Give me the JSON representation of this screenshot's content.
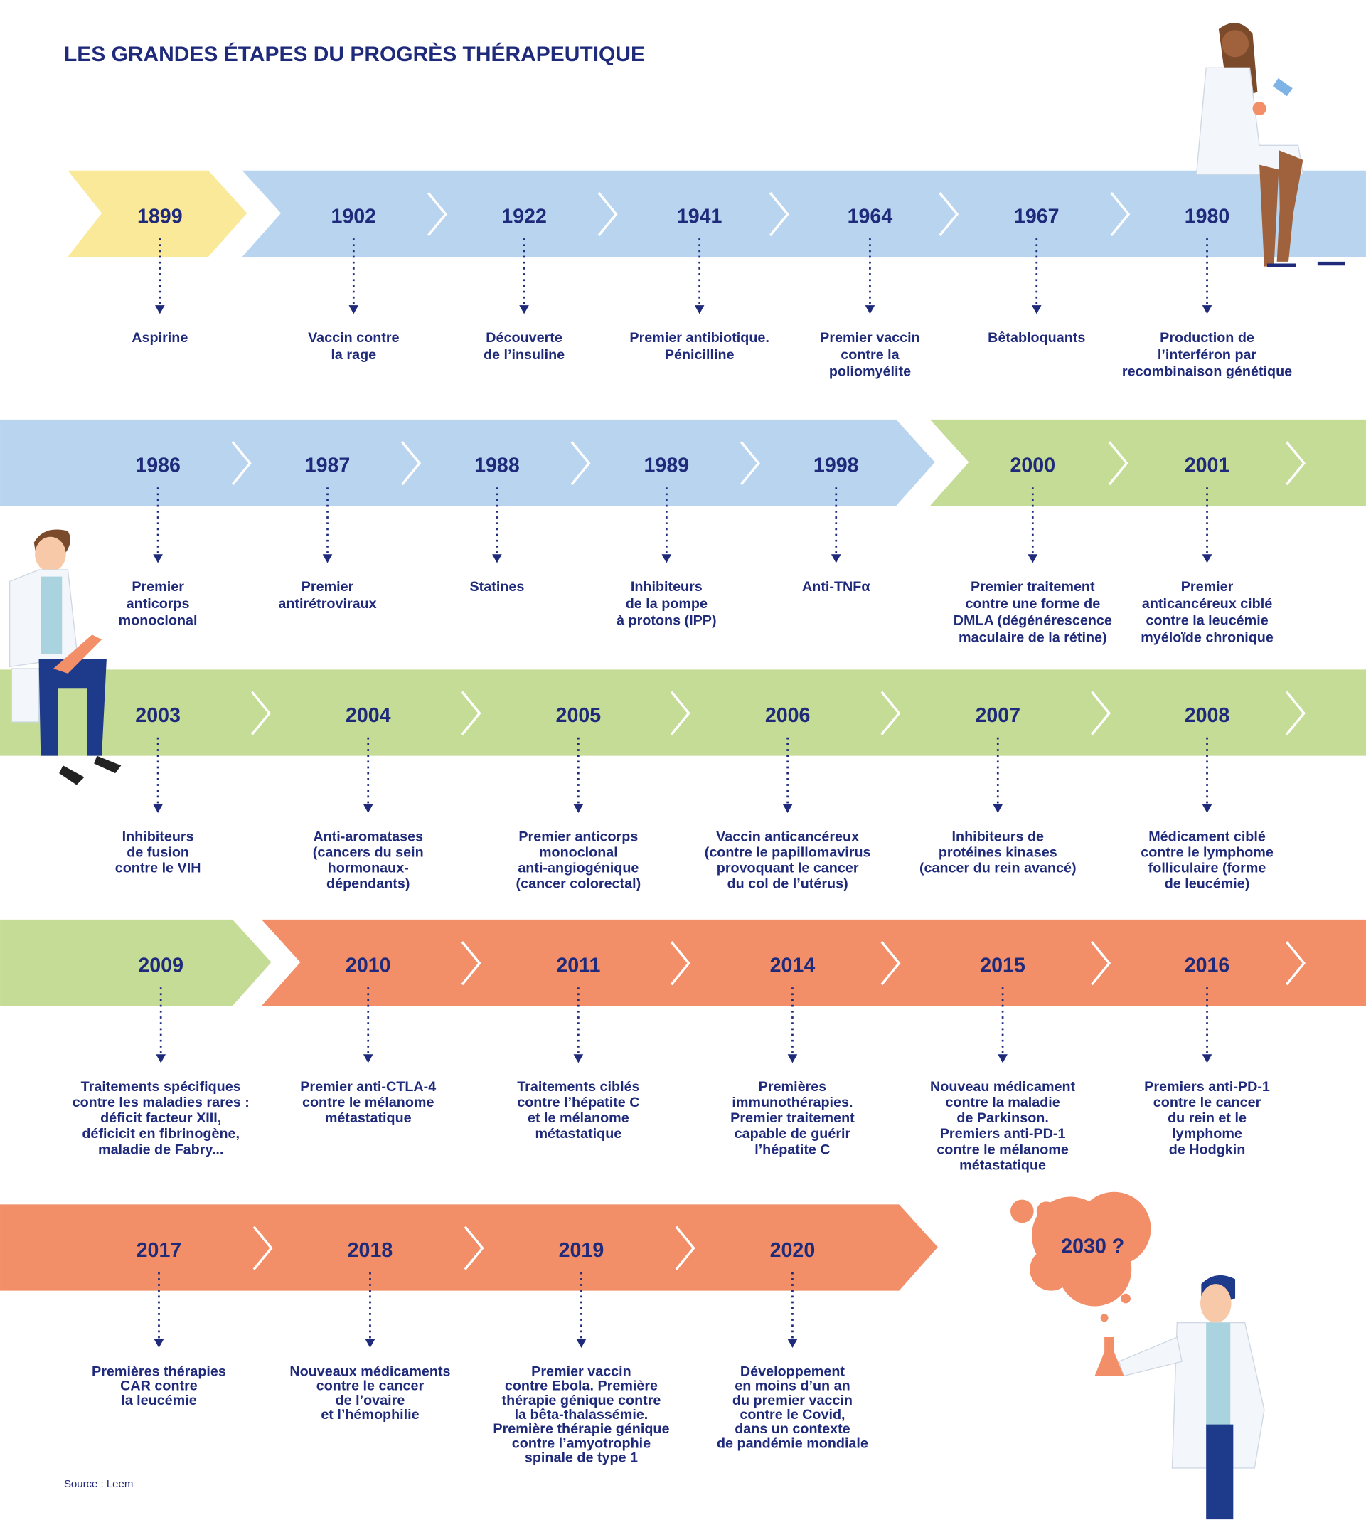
{
  "header": {
    "title": "LES GRANDES ÉTAPES DU PROGRÈS THÉRAPEUTIQUE"
  },
  "timeline": {
    "rows": [
      {
        "events": [
          {
            "year": "1899",
            "text": [
              "Aspirine"
            ]
          },
          {
            "year": "1902",
            "text": [
              "Vaccin contre",
              "la rage"
            ]
          },
          {
            "year": "1922",
            "text": [
              "Découverte",
              "de l’insuline"
            ]
          },
          {
            "year": "1941",
            "text": [
              "Premier antibiotique.",
              "Pénicilline"
            ]
          },
          {
            "year": "1964",
            "text": [
              "Premier vaccin",
              "contre la",
              "poliomyélite"
            ]
          },
          {
            "year": "1967",
            "text": [
              "Bêtabloquants"
            ]
          },
          {
            "year": "1980",
            "text": [
              "Production de",
              "l’interféron par",
              "recombinaison génétique"
            ]
          }
        ]
      },
      {
        "events": [
          {
            "year": "1986",
            "text": [
              "Premier",
              "anticorps",
              "monoclonal"
            ]
          },
          {
            "year": "1987",
            "text": [
              "Premier",
              "antirétroviraux"
            ]
          },
          {
            "year": "1988",
            "text": [
              "Statines"
            ]
          },
          {
            "year": "1989",
            "text": [
              "Inhibiteurs",
              "de la pompe",
              "à protons (IPP)"
            ]
          },
          {
            "year": "1998",
            "text": [
              "Anti-TNFα"
            ]
          },
          {
            "year": "2000",
            "text": [
              "Premier traitement",
              "contre une forme de",
              "DMLA (dégénérescence",
              "maculaire de la rétine)"
            ]
          },
          {
            "year": "2001",
            "text": [
              "Premier",
              "anticancéreux ciblé",
              "contre la leucémie",
              "myéloïde chronique"
            ]
          }
        ]
      },
      {
        "events": [
          {
            "year": "2003",
            "text": [
              "Inhibiteurs",
              "de fusion",
              "contre le VIH"
            ]
          },
          {
            "year": "2004",
            "text": [
              "Anti-aromatases",
              "(cancers du sein",
              "hormonaux-",
              "dépendants)"
            ]
          },
          {
            "year": "2005",
            "text": [
              "Premier anticorps",
              "monoclonal",
              "anti-angiogénique",
              "(cancer colorectal)"
            ]
          },
          {
            "year": "2006",
            "text": [
              "Vaccin anticancéreux",
              "(contre le papillomavirus",
              "provoquant le cancer",
              "du col de l’utérus)"
            ]
          },
          {
            "year": "2007",
            "text": [
              "Inhibiteurs de",
              "protéines kinases",
              "(cancer du rein avancé)"
            ]
          },
          {
            "year": "2008",
            "text": [
              "Médicament ciblé",
              "contre le lymphome",
              "folliculaire (forme",
              "de leucémie)"
            ]
          }
        ]
      },
      {
        "events": [
          {
            "year": "2009",
            "text": [
              "Traitements spécifiques",
              "contre les maladies rares :",
              "déficit facteur XIII,",
              "déficicit en fibrinogène,",
              "maladie de Fabry..."
            ]
          },
          {
            "year": "2010",
            "text": [
              "Premier anti-CTLA-4",
              "contre le mélanome",
              "métastatique"
            ]
          },
          {
            "year": "2011",
            "text": [
              "Traitements ciblés",
              "contre l’hépatite C",
              "et le mélanome",
              "métastatique"
            ]
          },
          {
            "year": "2014",
            "text": [
              "Premières",
              "immunothérapies.",
              "Premier traitement",
              "capable de guérir",
              "l’hépatite C"
            ]
          },
          {
            "year": "2015",
            "text": [
              "Nouveau médicament",
              "contre la maladie",
              "de Parkinson.",
              "Premiers anti-PD-1",
              "contre le mélanome",
              "métastatique"
            ]
          },
          {
            "year": "2016",
            "text": [
              "Premiers anti-PD-1",
              "contre le cancer",
              "du rein et le",
              "lymphome",
              "de Hodgkin"
            ]
          }
        ]
      },
      {
        "events": [
          {
            "year": "2017",
            "text": [
              "Premières thérapies",
              "CAR contre",
              "la leucémie"
            ]
          },
          {
            "year": "2018",
            "text": [
              "Nouveaux médicaments",
              "contre le cancer",
              "de l’ovaire",
              "et l’hémophilie"
            ]
          },
          {
            "year": "2019",
            "text": [
              "Premier vaccin",
              "contre Ebola. Première",
              "thérapie génique contre",
              "la bêta-thalassémie.",
              "Première thérapie génique",
              "contre l’amyotrophie",
              "spinale de type 1"
            ]
          },
          {
            "year": "2020",
            "text": [
              "Développement",
              "en moins d’un an",
              "du premier vaccin",
              "contre le Covid,",
              "dans un contexte",
              "de pandémie mondiale"
            ]
          }
        ]
      }
    ],
    "future": "2030 ?"
  },
  "footer": {
    "source": "Source : Leem"
  }
}
